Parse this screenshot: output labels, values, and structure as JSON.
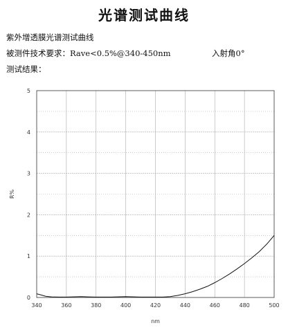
{
  "header": {
    "title": "光谱测试曲线",
    "line1": "紫外增透膜光谱测试曲线",
    "line2": "被测件技术要求：Rave<0.5%@340-450nm",
    "incidence": "入射角0°",
    "line3": "测试结果："
  },
  "colors": {
    "curve": "#111111",
    "grid": "#aaaaaa",
    "axis": "#333333"
  },
  "chart_data": {
    "type": "line",
    "title": "",
    "xlabel": "nm",
    "ylabel": "R%",
    "xlim": [
      340,
      500
    ],
    "ylim": [
      0,
      5
    ],
    "xticks": [
      340,
      360,
      380,
      400,
      420,
      440,
      460,
      480,
      500
    ],
    "yticks": [
      0,
      1,
      2,
      3,
      4,
      5
    ],
    "grid": true,
    "series": [
      {
        "x": [
          340,
          343,
          346,
          350,
          355,
          360,
          370,
          380,
          390,
          400,
          410,
          420,
          425,
          430,
          435,
          440,
          445,
          450,
          455,
          460,
          465,
          470,
          475,
          480,
          485,
          490,
          495,
          500
        ],
        "y": [
          0.09,
          0.06,
          0.03,
          0.015,
          0.01,
          0.01,
          0.02,
          0.01,
          0.01,
          0.02,
          0.01,
          0.01,
          0.01,
          0.02,
          0.05,
          0.09,
          0.14,
          0.2,
          0.27,
          0.36,
          0.46,
          0.57,
          0.69,
          0.82,
          0.96,
          1.11,
          1.29,
          1.5
        ]
      }
    ]
  }
}
